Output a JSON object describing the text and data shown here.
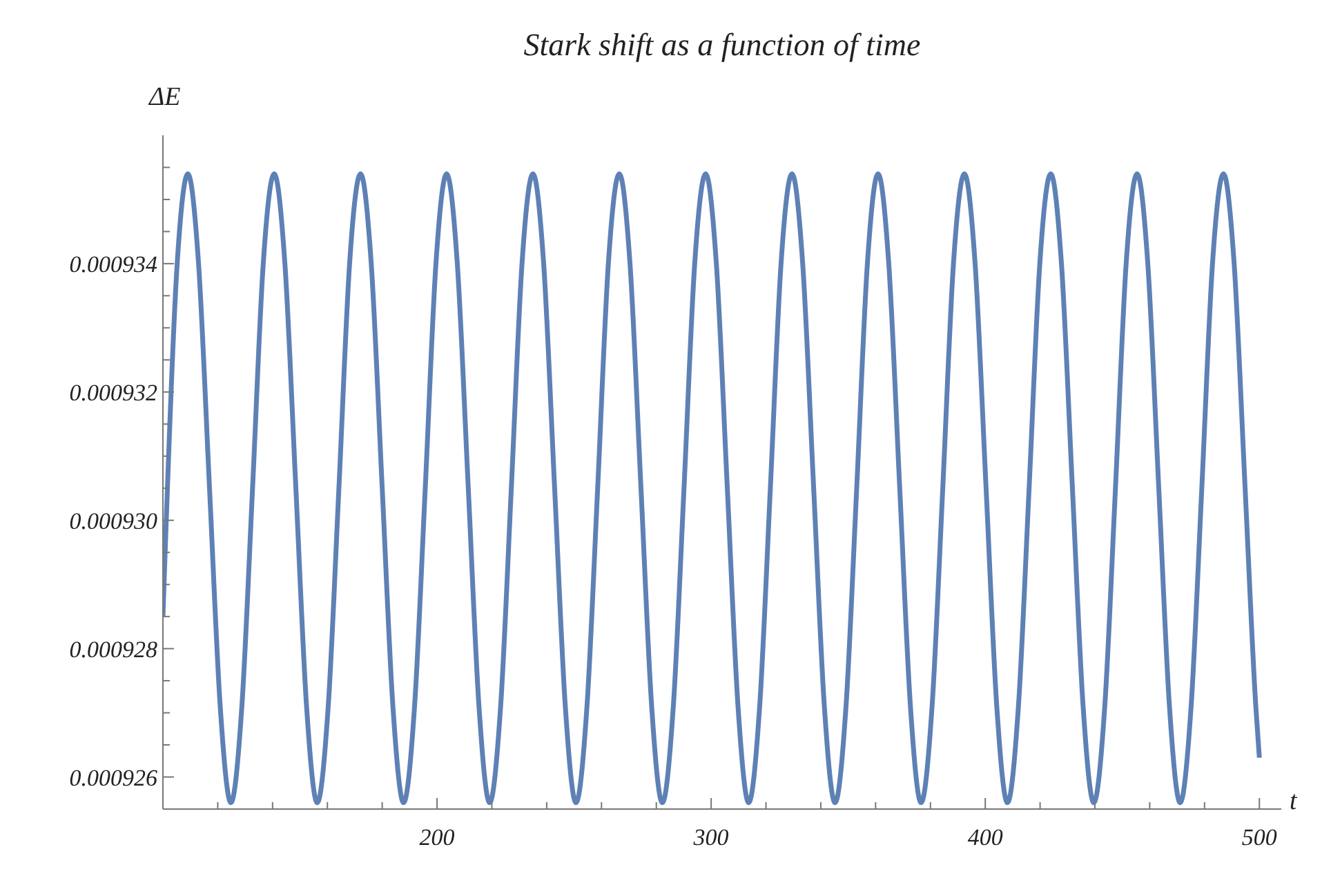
{
  "chart_data": {
    "type": "line",
    "title": "Stark shift as a function of time",
    "xlabel": "t",
    "ylabel": "ΔE",
    "x": [
      100,
      105.2,
      109.1,
      113.0,
      117.0,
      120.9,
      124.8,
      128.8,
      132.7,
      136.6,
      140.6,
      144.5,
      148.5,
      152.4,
      156.3,
      160.3,
      164.2,
      168.1,
      172.1,
      176.0,
      180.0,
      183.9,
      187.8,
      191.8,
      195.7,
      199.6,
      203.5,
      207.4,
      211.4,
      215.3,
      219.2,
      223.2,
      227.1,
      231.0,
      235.0,
      238.9,
      242.9,
      246.8,
      250.7,
      254.7,
      258.6,
      262.5,
      266.5,
      270.4,
      274.4,
      278.3,
      282.2,
      286.2,
      290.1,
      294.0,
      298.0,
      301.9,
      305.9,
      309.8,
      313.7,
      317.7,
      321.6,
      325.5,
      329.5,
      333.4,
      337.4,
      341.3,
      345.2,
      349.2,
      353.1,
      357.0,
      360.9,
      364.8,
      368.8,
      372.7,
      376.6,
      380.6,
      384.5,
      388.4,
      392.4,
      396.3,
      400.3,
      404.2,
      408.1,
      412.1,
      416.0,
      419.9,
      423.9,
      427.8,
      431.8,
      435.7,
      439.6,
      443.6,
      447.5,
      451.4,
      455.4,
      459.3,
      463.3,
      467.2,
      471.1,
      475.1,
      479.0,
      482.9,
      486.9,
      490.8,
      494.8,
      498.7,
      500
    ],
    "series": [
      {
        "color": "#5e81b5",
        "values": [
          0.0009285,
          0.000934,
          0.0009354,
          0.000934,
          0.0009305,
          0.0009271,
          0.0009256,
          0.0009271,
          0.0009305,
          0.000934,
          0.0009354,
          0.000934,
          0.0009305,
          0.0009271,
          0.0009256,
          0.0009271,
          0.0009305,
          0.000934,
          0.0009354,
          0.000934,
          0.0009305,
          0.0009271,
          0.0009256,
          0.0009271,
          0.0009305,
          0.000934,
          0.0009354,
          0.000934,
          0.0009305,
          0.0009271,
          0.0009256,
          0.0009271,
          0.0009305,
          0.000934,
          0.0009354,
          0.000934,
          0.0009305,
          0.0009271,
          0.0009256,
          0.0009271,
          0.0009305,
          0.000934,
          0.0009354,
          0.000934,
          0.0009305,
          0.0009271,
          0.0009256,
          0.0009271,
          0.0009305,
          0.000934,
          0.0009354,
          0.000934,
          0.0009305,
          0.0009271,
          0.0009256,
          0.0009271,
          0.0009305,
          0.000934,
          0.0009354,
          0.000934,
          0.0009305,
          0.0009271,
          0.0009256,
          0.0009271,
          0.0009305,
          0.000934,
          0.0009354,
          0.000934,
          0.0009305,
          0.0009271,
          0.0009256,
          0.0009271,
          0.0009305,
          0.000934,
          0.0009354,
          0.000934,
          0.0009305,
          0.0009271,
          0.0009256,
          0.0009271,
          0.0009305,
          0.000934,
          0.0009354,
          0.000934,
          0.0009305,
          0.0009271,
          0.0009256,
          0.0009271,
          0.0009305,
          0.000934,
          0.0009354,
          0.000934,
          0.0009305,
          0.0009271,
          0.0009256,
          0.0009271,
          0.0009305,
          0.000934,
          0.0009354,
          0.000934,
          0.0009305,
          0.0009271,
          0.0009263
        ]
      }
    ],
    "xlim": [
      100,
      508
    ],
    "xticks": [
      {
        "value": 120,
        "label": null
      },
      {
        "value": 140,
        "label": null
      },
      {
        "value": 160,
        "label": null
      },
      {
        "value": 180,
        "label": null
      },
      200,
      {
        "value": 220,
        "label": null
      },
      {
        "value": 240,
        "label": null
      },
      {
        "value": 260,
        "label": null
      },
      {
        "value": 280,
        "label": null
      },
      300,
      {
        "value": 320,
        "label": null
      },
      {
        "value": 340,
        "label": null
      },
      {
        "value": 360,
        "label": null
      },
      {
        "value": 380,
        "label": null
      },
      400,
      {
        "value": 420,
        "label": null
      },
      {
        "value": 440,
        "label": null
      },
      {
        "value": 460,
        "label": null
      },
      {
        "value": 480,
        "label": null
      },
      500
    ],
    "ylim": [
      0.0009255,
      0.000936
    ],
    "yticks": [
      0.000926,
      {
        "value": 0.0009265,
        "label": null
      },
      {
        "value": 0.000927,
        "label": null
      },
      {
        "value": 0.0009275,
        "label": null
      },
      0.000928,
      {
        "value": 0.0009285,
        "label": null
      },
      {
        "value": 0.000929,
        "label": null
      },
      {
        "value": 0.0009295,
        "label": null
      },
      {
        "value": 0.00093,
        "label": "0.000930"
      },
      {
        "value": 0.0009305,
        "label": null
      },
      {
        "value": 0.000931,
        "label": null
      },
      {
        "value": 0.0009315,
        "label": null
      },
      0.000932,
      {
        "value": 0.0009325,
        "label": null
      },
      {
        "value": 0.000933,
        "label": null
      },
      {
        "value": 0.0009335,
        "label": null
      },
      0.000934,
      {
        "value": 0.0009345,
        "label": null
      },
      {
        "value": 0.000935,
        "label": null
      },
      {
        "value": 0.0009355,
        "label": null
      }
    ]
  }
}
